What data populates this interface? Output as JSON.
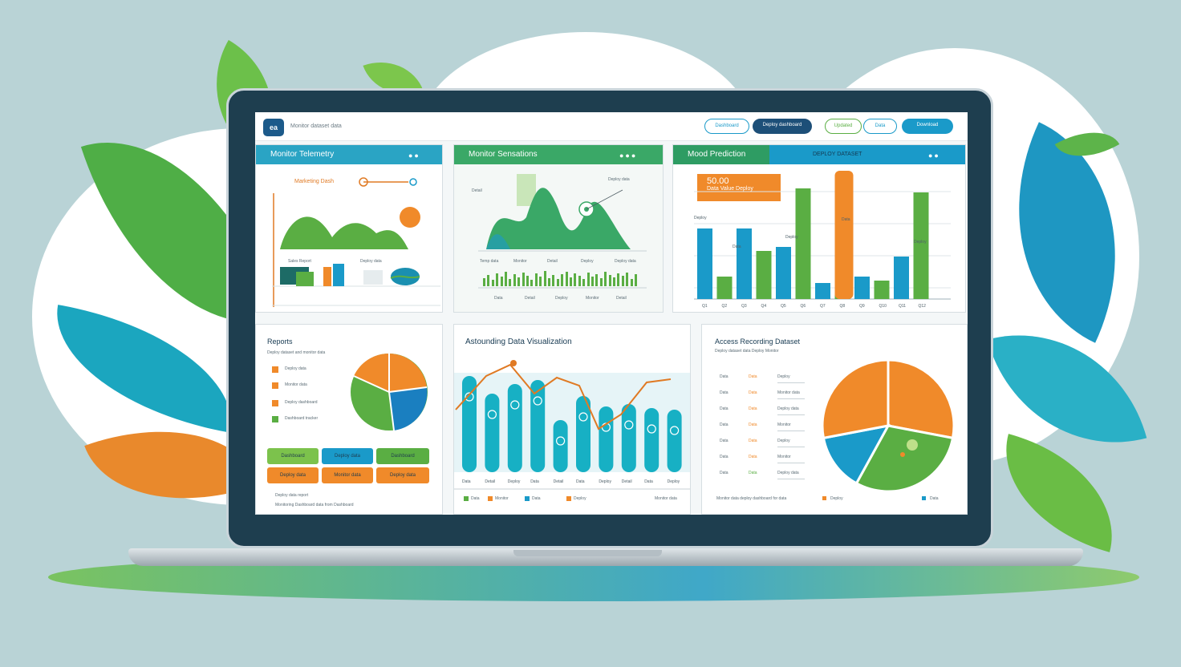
{
  "topbar": {
    "logo": "ea",
    "crumb": "Monitor dataset data",
    "pills": [
      "Dashboard",
      "Deploy dashboard",
      "Updated",
      "Data",
      "Download"
    ]
  },
  "panels": {
    "monitor": {
      "title": "Monitor Telemetry",
      "label_a": "Marketing Dash",
      "label_b": "Sales Report",
      "label_c": "Deploy data"
    },
    "sensors": {
      "title": "Monitor Sensations",
      "label_a": "Detail",
      "label_b": "Deploy data",
      "axis": [
        "Temp data",
        "Monitor",
        "Detail",
        "Deploy",
        "Deploy data"
      ],
      "foot": [
        "Data",
        "Detail",
        "Deploy",
        "Monitor",
        "Detail"
      ]
    },
    "bars": {
      "title": "Mood Prediction",
      "subtitle": "DEPLOY DATASET",
      "callout_big": "50.00",
      "callout_small": "Data Value Deploy",
      "toplabels": [
        "Deploy",
        "Data",
        "Deploy",
        "Data",
        "Deploy"
      ],
      "xlabels": [
        "Q1",
        "Q2",
        "Q3",
        "Q4",
        "Q5",
        "Q6",
        "Q7",
        "Q8",
        "Q9",
        "Q10",
        "Q11",
        "Q12"
      ]
    },
    "reports": {
      "title": "Reports",
      "subtitle": "Deploy dataset and monitor data",
      "items": [
        "Deploy data",
        "Monitor data",
        "Deploy dashboard",
        "Dashboard tracker"
      ],
      "buttons_row1": [
        "Dashboard",
        "Deploy data",
        "Dashboard"
      ],
      "buttons_row2": [
        "Deploy data",
        "Monitor data",
        "Deploy data"
      ],
      "notes": [
        "Deploy data report",
        "Monitoring Dashboard data from Dashboard"
      ]
    },
    "viz": {
      "title": "Astounding Data Visualization",
      "xlabels": [
        "Data",
        "Detail",
        "Deploy",
        "Data",
        "Detail",
        "Data",
        "Deploy",
        "Detail",
        "Data",
        "Deploy"
      ],
      "foot": [
        "Data",
        "Monitor",
        "Data",
        "Deploy",
        "Monitor data"
      ]
    },
    "pie": {
      "title": "Access Recording Dataset",
      "subtitle": "Deploy dataset data Deploy Monitor",
      "rows": [
        [
          "Data",
          "Data",
          "Deploy"
        ],
        [
          "Data",
          "Data",
          "Monitor data"
        ],
        [
          "Data",
          "Data",
          "Deploy data"
        ],
        [
          "Data",
          "Data",
          "Monitor"
        ],
        [
          "Data",
          "Data",
          "Deploy"
        ],
        [
          "Data",
          "Data",
          "Monitor"
        ],
        [
          "Data",
          "Data",
          "Deploy data"
        ]
      ],
      "foot_left": "Monitor data deploy dashboard for data",
      "foot_right": [
        "Deploy",
        "Data"
      ]
    }
  },
  "chart_data": [
    {
      "type": "bar",
      "title": "Mood Prediction",
      "categories": [
        "Q1",
        "Q2",
        "Q3",
        "Q4",
        "Q5",
        "Q6",
        "Q7",
        "Q8",
        "Q9",
        "Q10",
        "Q11",
        "Q12"
      ],
      "series": [
        {
          "values": [
            88,
            28,
            88,
            60,
            65,
            138,
            20,
            85,
            28,
            23,
            53,
            133
          ]
        },
        {
          "values": [
            0,
            0,
            0,
            0,
            0,
            0,
            0,
            160,
            0,
            0,
            0,
            0
          ]
        }
      ],
      "ylim": [
        0,
        160
      ]
    },
    {
      "type": "bar",
      "title": "Astounding Data Visualization",
      "categories": [
        "Data",
        "Detail",
        "Deploy",
        "Data",
        "Detail",
        "Data",
        "Deploy",
        "Detail",
        "Data",
        "Deploy"
      ],
      "values": [
        120,
        98,
        110,
        115,
        65,
        95,
        82,
        85,
        80,
        78
      ],
      "ylim": [
        0,
        130
      ]
    },
    {
      "type": "pie",
      "title": "Access Recording Dataset",
      "values": [
        28,
        30,
        14,
        28
      ]
    }
  ],
  "colors": {
    "green": "#5aae43",
    "blue": "#1a9ac9",
    "orange": "#f08a2a",
    "navy": "#1d4f78",
    "teal": "#17b0c4"
  }
}
